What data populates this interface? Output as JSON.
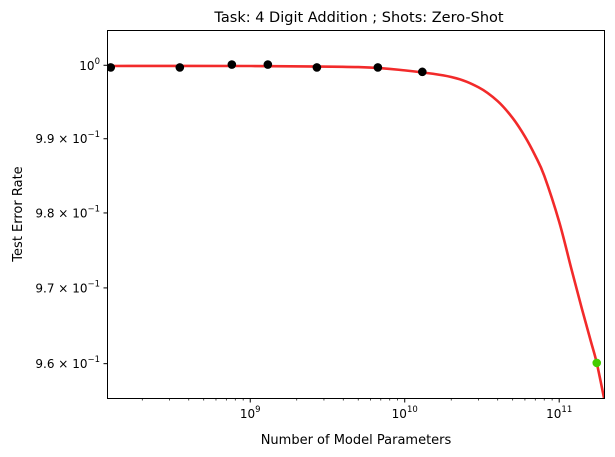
{
  "chart_data": {
    "type": "scatter",
    "title": "Task: 4 Digit Addition ; Shots: Zero-Shot",
    "xlabel": "Number of Model Parameters",
    "ylabel": "Test Error Rate",
    "xscale": "log",
    "yscale": "log",
    "xlim": [
      120000000.0,
      195000000000.0
    ],
    "ylim": [
      0.9555,
      1.0047
    ],
    "x_ticks": [
      {
        "value": 1000000000.0,
        "base": "10",
        "exp": "9"
      },
      {
        "value": 10000000000.0,
        "base": "10",
        "exp": "10"
      },
      {
        "value": 100000000000.0,
        "base": "10",
        "exp": "11"
      }
    ],
    "y_ticks": [
      {
        "value": 1.0,
        "mant": "",
        "base": "10",
        "exp": "0"
      },
      {
        "value": 0.99,
        "mant": "9.9 × ",
        "base": "10",
        "exp": "−1"
      },
      {
        "value": 0.98,
        "mant": "9.8 × ",
        "base": "10",
        "exp": "−1"
      },
      {
        "value": 0.97,
        "mant": "9.7 × ",
        "base": "10",
        "exp": "−1"
      },
      {
        "value": 0.96,
        "mant": "9.6 × ",
        "base": "10",
        "exp": "−1"
      }
    ],
    "series": [
      {
        "kind": "points",
        "color": "#000000",
        "x": [
          125000000.0,
          350000000.0,
          760000000.0,
          1300000000.0,
          2700000000.0,
          6700000000.0,
          13000000000.0
        ],
        "y": [
          0.9997,
          0.9997,
          1.0001,
          1.0001,
          0.9997,
          0.9997,
          0.9991
        ]
      },
      {
        "kind": "fit",
        "color": "#f22a2a",
        "x": [
          120000000.0,
          1000000000.0,
          5000000000.0,
          10000000000.0,
          20000000000.0,
          30000000000.0,
          40000000000.0,
          50000000000.0,
          60000000000.0,
          70000000000.0,
          80000000000.0,
          100000000000.0,
          120000000000.0,
          140000000000.0,
          160000000000.0,
          175000000000.0,
          195000000000.0
        ],
        "y": [
          0.9999,
          0.9999,
          0.99975,
          0.9993,
          0.9984,
          0.997,
          0.9951,
          0.9928,
          0.9903,
          0.9877,
          0.985,
          0.9788,
          0.9725,
          0.9673,
          0.963,
          0.9601,
          0.9555
        ]
      },
      {
        "kind": "highlight",
        "color": "#44cc00",
        "x": [
          175000000000.0
        ],
        "y": [
          0.9601
        ]
      }
    ]
  }
}
